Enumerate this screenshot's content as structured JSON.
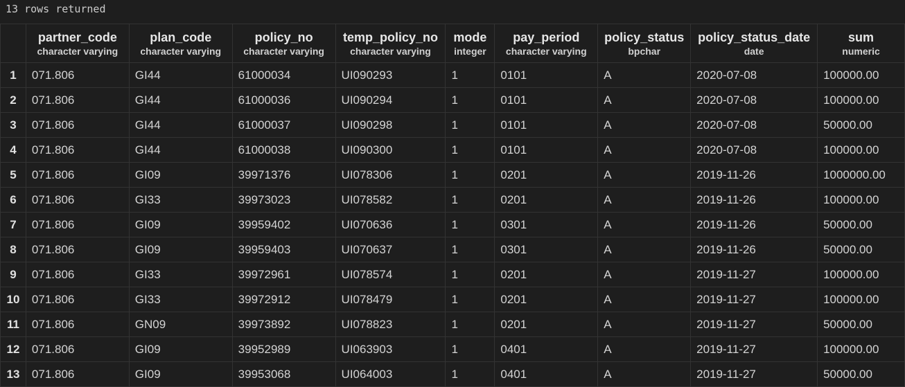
{
  "status_text": "13 rows returned",
  "columns": [
    {
      "name": "partner_code",
      "type": "character varying"
    },
    {
      "name": "plan_code",
      "type": "character varying"
    },
    {
      "name": "policy_no",
      "type": "character varying"
    },
    {
      "name": "temp_policy_no",
      "type": "character varying"
    },
    {
      "name": "mode",
      "type": "integer"
    },
    {
      "name": "pay_period",
      "type": "character varying"
    },
    {
      "name": "policy_status",
      "type": "bpchar"
    },
    {
      "name": "policy_status_date",
      "type": "date"
    },
    {
      "name": "sum",
      "type": "numeric"
    }
  ],
  "rows": [
    {
      "n": "1",
      "cells": [
        "071.806",
        "GI44",
        "61000034",
        "UI090293",
        "1",
        "0101",
        "A",
        "2020-07-08",
        "100000.00"
      ]
    },
    {
      "n": "2",
      "cells": [
        "071.806",
        "GI44",
        "61000036",
        "UI090294",
        "1",
        "0101",
        "A",
        "2020-07-08",
        "100000.00"
      ]
    },
    {
      "n": "3",
      "cells": [
        "071.806",
        "GI44",
        "61000037",
        "UI090298",
        "1",
        "0101",
        "A",
        "2020-07-08",
        "50000.00"
      ]
    },
    {
      "n": "4",
      "cells": [
        "071.806",
        "GI44",
        "61000038",
        "UI090300",
        "1",
        "0101",
        "A",
        "2020-07-08",
        "100000.00"
      ]
    },
    {
      "n": "5",
      "cells": [
        "071.806",
        "GI09",
        "39971376",
        "UI078306",
        "1",
        "0201",
        "A",
        "2019-11-26",
        "1000000.00"
      ]
    },
    {
      "n": "6",
      "cells": [
        "071.806",
        "GI33",
        "39973023",
        "UI078582",
        "1",
        "0201",
        "A",
        "2019-11-26",
        "100000.00"
      ]
    },
    {
      "n": "7",
      "cells": [
        "071.806",
        "GI09",
        "39959402",
        "UI070636",
        "1",
        "0301",
        "A",
        "2019-11-26",
        "50000.00"
      ]
    },
    {
      "n": "8",
      "cells": [
        "071.806",
        "GI09",
        "39959403",
        "UI070637",
        "1",
        "0301",
        "A",
        "2019-11-26",
        "50000.00"
      ]
    },
    {
      "n": "9",
      "cells": [
        "071.806",
        "GI33",
        "39972961",
        "UI078574",
        "1",
        "0201",
        "A",
        "2019-11-27",
        "100000.00"
      ]
    },
    {
      "n": "10",
      "cells": [
        "071.806",
        "GI33",
        "39972912",
        "UI078479",
        "1",
        "0201",
        "A",
        "2019-11-27",
        "100000.00"
      ]
    },
    {
      "n": "11",
      "cells": [
        "071.806",
        "GN09",
        "39973892",
        "UI078823",
        "1",
        "0201",
        "A",
        "2019-11-27",
        "50000.00"
      ]
    },
    {
      "n": "12",
      "cells": [
        "071.806",
        "GI09",
        "39952989",
        "UI063903",
        "1",
        "0401",
        "A",
        "2019-11-27",
        "100000.00"
      ]
    },
    {
      "n": "13",
      "cells": [
        "071.806",
        "GI09",
        "39953068",
        "UI064003",
        "1",
        "0401",
        "A",
        "2019-11-27",
        "50000.00"
      ]
    }
  ]
}
